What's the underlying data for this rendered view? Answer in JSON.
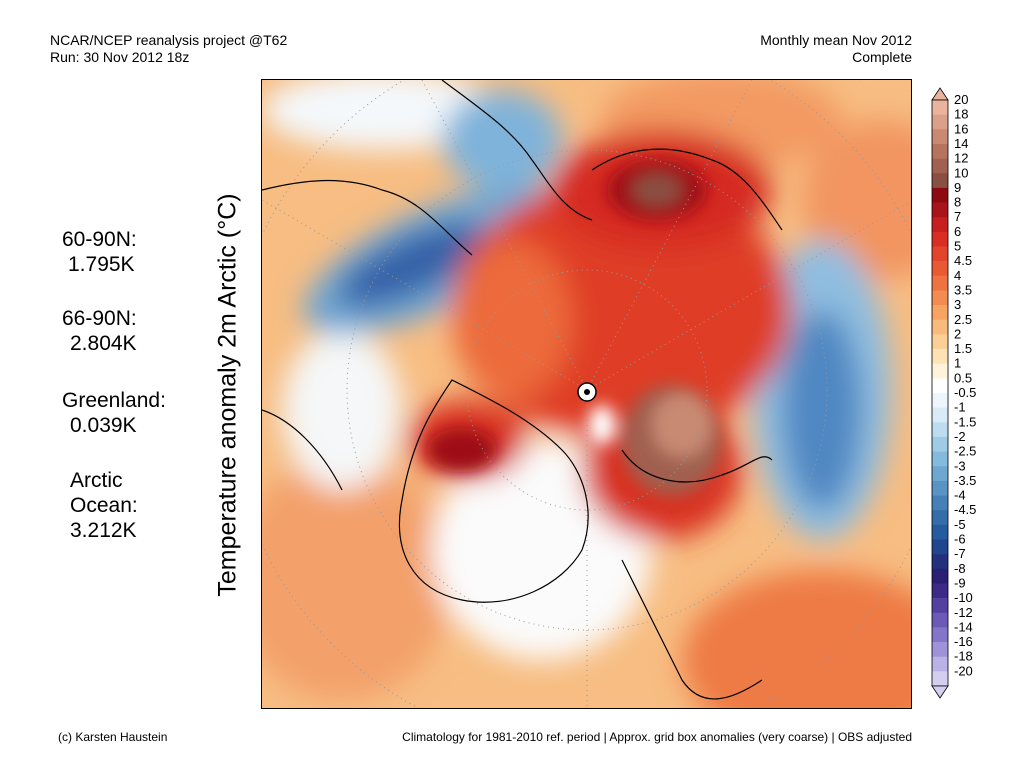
{
  "header": {
    "left_line1": "NCAR/NCEP reanalysis project @T62",
    "left_line2": "Run: 30 Nov 2012 18z",
    "right_line1": "Monthly mean Nov 2012",
    "right_line2": "Complete"
  },
  "map_title": "Temperature anomaly 2m Arctic (°C)",
  "stats": [
    {
      "label": "60-90N:",
      "value": "1.795K"
    },
    {
      "label": "66-90N:",
      "value": "2.804K"
    },
    {
      "label": "Greenland:",
      "value": "0.039K"
    },
    {
      "label": "Arctic",
      "label2": "Ocean:",
      "value": "3.212K"
    }
  ],
  "colorbar": {
    "levels": [
      "20",
      "18",
      "16",
      "14",
      "12",
      "10",
      "9",
      "8",
      "7",
      "6",
      "5",
      "4.5",
      "4",
      "3.5",
      "3",
      "2.5",
      "2",
      "1.5",
      "1",
      "0.5",
      "-0.5",
      "-1",
      "-1.5",
      "-2",
      "-2.5",
      "-3",
      "-3.5",
      "-4",
      "-4.5",
      "-5",
      "-6",
      "-7",
      "-8",
      "-9",
      "-10",
      "-12",
      "-14",
      "-16",
      "-18",
      "-20"
    ],
    "colors": [
      "#e9b39c",
      "#dba08a",
      "#c98a73",
      "#b6745e",
      "#a06150",
      "#8a4f43",
      "#8c0a10",
      "#a8141a",
      "#c51f1f",
      "#d92e24",
      "#e2452b",
      "#e95a34",
      "#ee7340",
      "#f38c50",
      "#f6a363",
      "#f9bb7c",
      "#fbd097",
      "#fde3b6",
      "#fff3d9",
      "#ffffff",
      "#eef6fb",
      "#d8ebf6",
      "#bcdcef",
      "#9ecbe6",
      "#84badc",
      "#6ea8d1",
      "#5994c5",
      "#4581b8",
      "#356dab",
      "#275b9f",
      "#1f468e",
      "#22307d",
      "#2a1f72",
      "#3c2a86",
      "#5340a0",
      "#6b5ab6",
      "#8575c8",
      "#9f92d6",
      "#bab1e4",
      "#d4cff0"
    ]
  },
  "footer": {
    "left": "(c) Karsten Haustein",
    "right": "Climatology for 1981-2010 ref. period | Approx. grid box anomalies (very coarse) | OBS adjusted"
  }
}
